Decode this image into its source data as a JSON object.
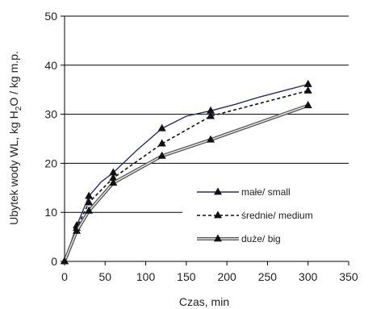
{
  "chart_data": {
    "type": "line",
    "title": "",
    "xlabel": "Czas, min",
    "ylabel": {
      "prefix": "Ubytek wody WL, kg H",
      "sub": "2",
      "suffix": "O / kg m.p."
    },
    "xlim": [
      0,
      350
    ],
    "ylim": [
      0,
      50
    ],
    "xticks": [
      0,
      50,
      100,
      150,
      200,
      250,
      300,
      350
    ],
    "yticks": [
      0,
      10,
      20,
      30,
      40,
      50
    ],
    "grid": "horizontal",
    "legend_position": "lower-right",
    "series": [
      {
        "name": "małe/ small",
        "style": "solid",
        "color": "#2b2b6b",
        "x": [
          0,
          15,
          30,
          60,
          120,
          180,
          300
        ],
        "y": [
          0,
          7.3,
          13.3,
          18.1,
          27.1,
          30.7,
          36.1
        ],
        "curve_x": [
          0,
          15,
          30,
          45,
          60,
          90,
          120,
          150,
          180,
          210,
          240,
          270,
          300
        ],
        "curve_y": [
          0,
          7.3,
          13.3,
          16.2,
          18.1,
          22.8,
          27.1,
          29.6,
          30.7,
          32.0,
          33.5,
          34.8,
          36.1
        ]
      },
      {
        "name": "średnie/ medium",
        "style": "dashed",
        "color": "#111111",
        "x": [
          0,
          15,
          30,
          60,
          120,
          180,
          300
        ],
        "y": [
          0,
          6.8,
          12.0,
          17.0,
          24.0,
          29.6,
          34.8
        ],
        "curve_x": [
          0,
          15,
          30,
          60,
          120,
          180,
          300
        ],
        "curve_y": [
          0,
          6.8,
          12.0,
          17.0,
          24.0,
          29.6,
          34.8
        ]
      },
      {
        "name": "duże/ big",
        "style": "double",
        "color": "#555555",
        "x": [
          0,
          15,
          30,
          60,
          120,
          180,
          300
        ],
        "y": [
          0,
          6.2,
          10.3,
          16.0,
          21.5,
          24.8,
          31.8
        ],
        "curve_x": [
          0,
          15,
          30,
          60,
          120,
          180,
          300
        ],
        "curve_y": [
          0,
          6.2,
          10.3,
          16.0,
          21.5,
          24.8,
          31.8
        ]
      }
    ]
  }
}
